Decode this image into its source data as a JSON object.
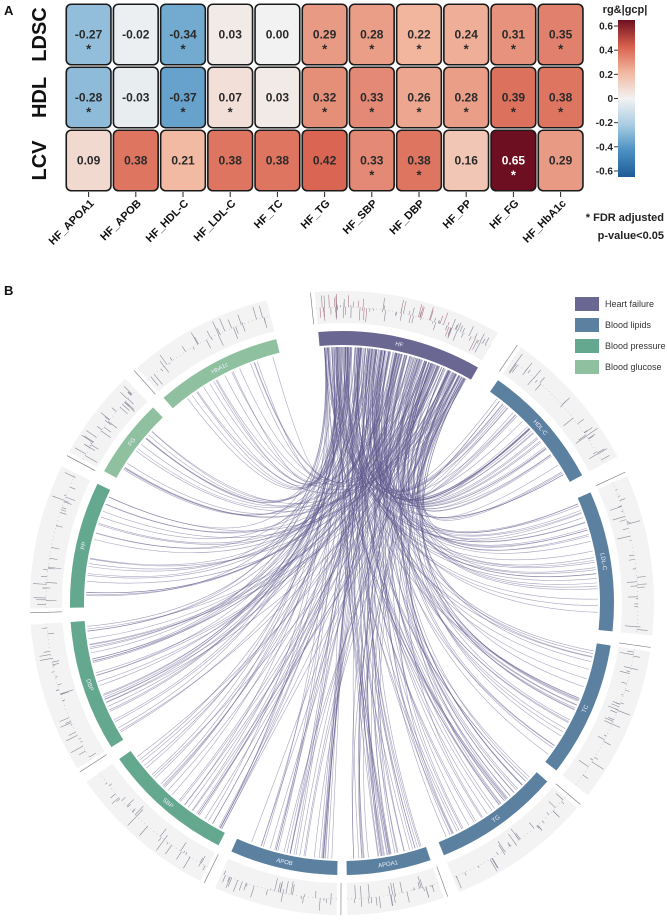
{
  "panels": {
    "a_label": "A",
    "b_label": "B"
  },
  "chart_data": [
    {
      "type": "heatmap",
      "title": "",
      "rows": [
        "LDSC",
        "HDL",
        "LCV"
      ],
      "columns": [
        "HF_APOA1",
        "HF_APOB",
        "HF_HDL-C",
        "HF_LDL-C",
        "HF_TC",
        "HF_TG",
        "HF_SBP",
        "HF_DBP",
        "HF_PP",
        "HF_FG",
        "HF_HbA1c"
      ],
      "values": [
        [
          -0.27,
          -0.02,
          -0.34,
          0.03,
          0.0,
          0.29,
          0.28,
          0.22,
          0.24,
          0.31,
          0.35
        ],
        [
          -0.28,
          -0.03,
          -0.37,
          0.07,
          0.03,
          0.32,
          0.33,
          0.26,
          0.28,
          0.39,
          0.38
        ],
        [
          0.09,
          0.38,
          0.21,
          0.38,
          0.38,
          0.42,
          0.33,
          0.38,
          0.16,
          0.65,
          0.29
        ]
      ],
      "labels": [
        [
          "-0.27",
          "-0.02",
          "-0.34",
          "0.03",
          "0.00",
          "0.29",
          "0.28",
          "0.22",
          "0.24",
          "0.31",
          "0.35"
        ],
        [
          "-0.28",
          "-0.03",
          "-0.37",
          "0.07",
          "0.03",
          "0.32",
          "0.33",
          "0.26",
          "0.28",
          "0.39",
          "0.38"
        ],
        [
          "0.09",
          "0.38",
          "0.21",
          "0.38",
          "0.38",
          "0.42",
          "0.33",
          "0.38",
          "0.16",
          "0.65",
          "0.29"
        ]
      ],
      "significant": [
        [
          true,
          false,
          true,
          false,
          false,
          true,
          true,
          true,
          true,
          true,
          true
        ],
        [
          true,
          false,
          true,
          true,
          false,
          true,
          true,
          true,
          true,
          true,
          true
        ],
        [
          false,
          false,
          false,
          false,
          false,
          false,
          true,
          true,
          false,
          true,
          false
        ]
      ],
      "colorbar": {
        "title": "rg&|gcp|",
        "range": [
          -0.65,
          0.65
        ],
        "ticks": [
          0.6,
          0.4,
          0.2,
          0,
          -0.2,
          -0.4,
          -0.6
        ],
        "tick_labels": [
          "0.6",
          "0.4",
          "0.2",
          "0",
          "-0.2",
          "-0.4",
          "-0.6"
        ],
        "colors": [
          "#1f5c97",
          "#4a90c2",
          "#a9cde3",
          "#f2f2f2",
          "#f2b7a0",
          "#d7604d",
          "#6d0f20"
        ]
      },
      "footnote": [
        "* FDR adjusted",
        "p-value<0.05"
      ],
      "star": "*"
    },
    {
      "type": "chord",
      "segments": [
        {
          "name": "HF",
          "group": "Heart failure",
          "start": -5,
          "end": 30
        },
        {
          "name": "HDL-C",
          "group": "Blood lipids",
          "start": 35,
          "end": 62
        },
        {
          "name": "LDL-C",
          "group": "Blood lipids",
          "start": 66,
          "end": 96
        },
        {
          "name": "TC",
          "group": "Blood lipids",
          "start": 99,
          "end": 128
        },
        {
          "name": "TG",
          "group": "Blood lipids",
          "start": 131,
          "end": 158
        },
        {
          "name": "APOA1",
          "group": "Blood lipids",
          "start": 161,
          "end": 179
        },
        {
          "name": "APOB",
          "group": "Blood lipids",
          "start": 181,
          "end": 204
        },
        {
          "name": "SBP",
          "group": "Blood pressure",
          "start": 207,
          "end": 235
        },
        {
          "name": "DBP",
          "group": "Blood pressure",
          "start": 238,
          "end": 266
        },
        {
          "name": "PP",
          "group": "Blood pressure",
          "start": 269,
          "end": 296
        },
        {
          "name": "FG",
          "group": "Blood glucose",
          "start": 299,
          "end": 316
        },
        {
          "name": "HbA1c",
          "group": "Blood glucose",
          "start": 319,
          "end": 346
        }
      ],
      "legend": [
        {
          "label": "Heart failure",
          "color": "#6b6793"
        },
        {
          "label": "Blood lipids",
          "color": "#5b80a0"
        },
        {
          "label": "Blood pressure",
          "color": "#64a890"
        },
        {
          "label": "Blood glucose",
          "color": "#8fc0a0"
        }
      ],
      "track_axis_labels": [
        "1",
        "0",
        "-1"
      ],
      "link_color": "#5e5a8c",
      "link_counts": {
        "HDL-C": 40,
        "LDL-C": 30,
        "TC": 28,
        "TG": 40,
        "APOA1": 35,
        "APOB": 30,
        "SBP": 35,
        "DBP": 35,
        "PP": 22,
        "FG": 14,
        "HbA1c": 18
      }
    }
  ]
}
